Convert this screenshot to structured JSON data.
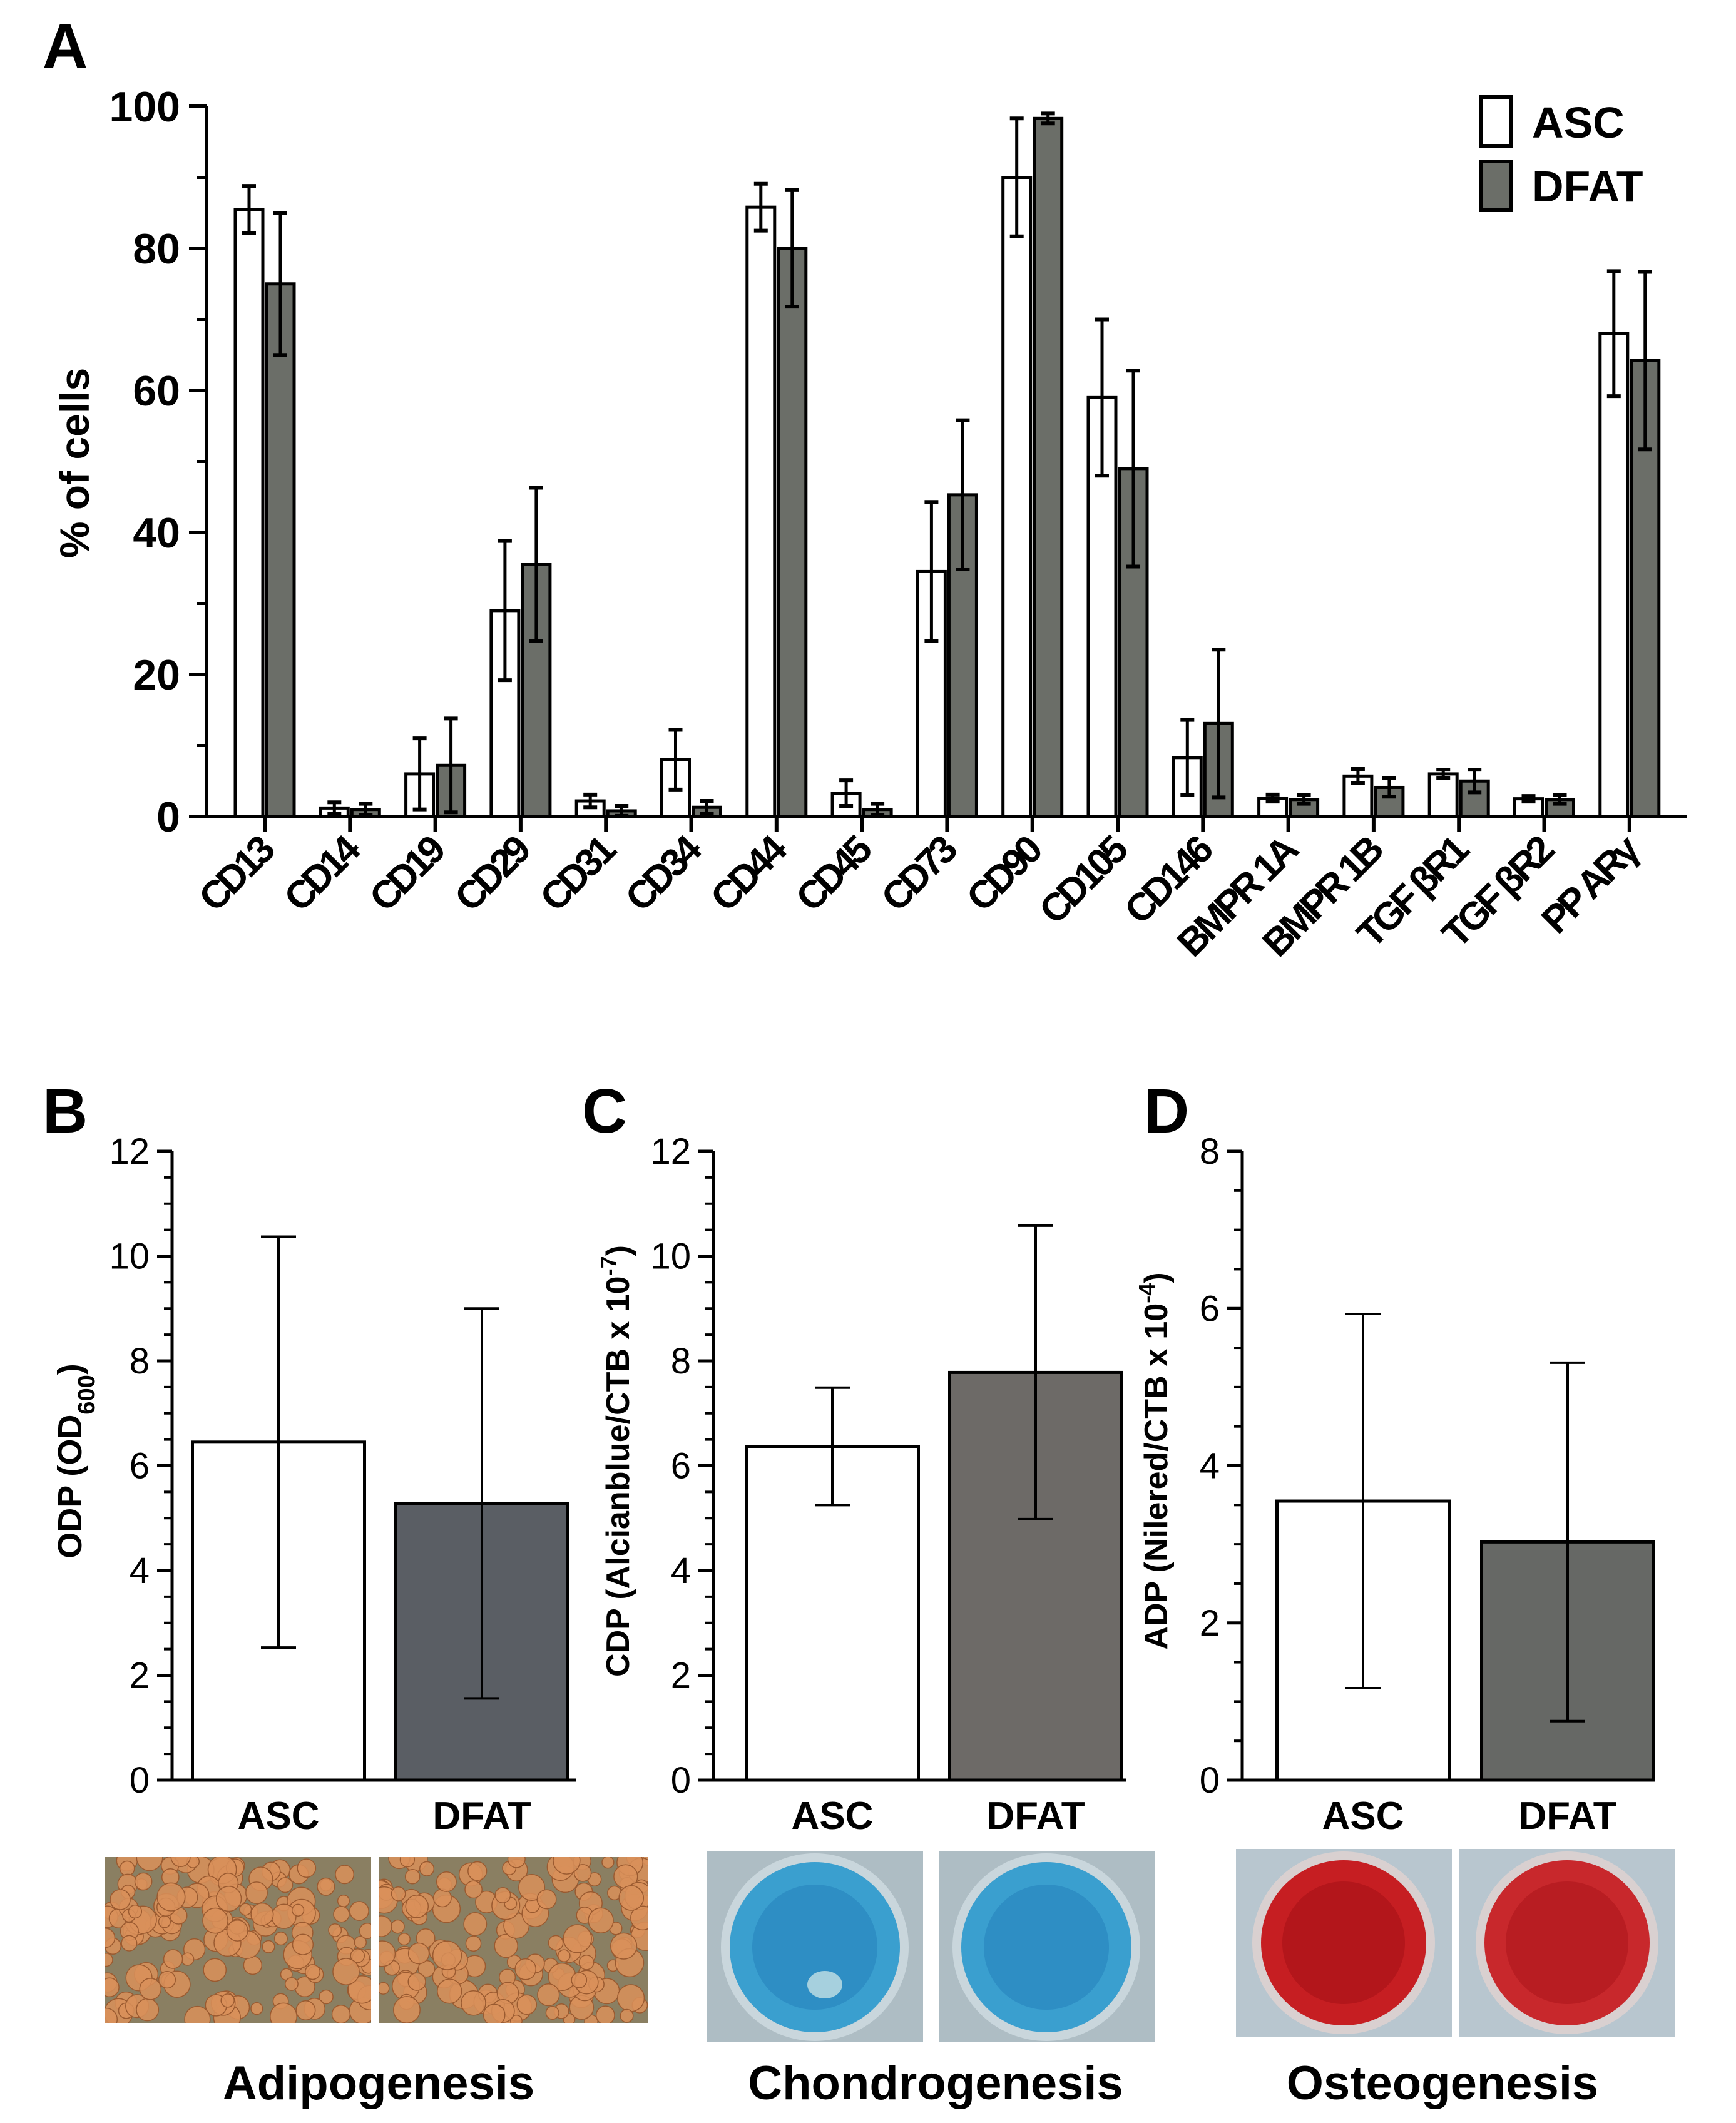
{
  "colors": {
    "asc_fill": "#ffffff",
    "dfat_fill_a": "#6b6e68",
    "dfat_fill_b": "#5a5e64",
    "dfat_fill_c": "#6d6a67",
    "dfat_fill_d": "#666865",
    "stroke": "#000000",
    "adipo_base": "#8a7f62",
    "adipo_cell": "#d9915b",
    "chondro_bg": "#aebdc4",
    "chondro_well": "#3a9fcf",
    "osteo_bg": "#b8c6cf",
    "osteo_well": "#c61e22"
  },
  "chart_data": [
    {
      "panel": "A",
      "type": "bar",
      "ylabel": "% of cells",
      "ylim": [
        0,
        100
      ],
      "yticks": [
        "0",
        "20",
        "40",
        "60",
        "80",
        "100"
      ],
      "legend": [
        "ASC",
        "DFAT"
      ],
      "legend_position": "top-right",
      "categories": [
        "CD13",
        "CD14",
        "CD19",
        "CD29",
        "CD31",
        "CD34",
        "CD44",
        "CD45",
        "CD73",
        "CD90",
        "CD105",
        "CD146",
        "BMPR  1A",
        "BMPR  1B",
        "TGF  βR1",
        "TGF  βR2",
        "PP ARγ"
      ],
      "series": [
        {
          "name": "ASC",
          "values": [
            85.5,
            1.2,
            6.0,
            29.0,
            2.2,
            8.0,
            85.8,
            3.3,
            34.5,
            90.0,
            59.0,
            8.3,
            2.6,
            5.7,
            6.0,
            2.5,
            68.0
          ],
          "errors": [
            3.3,
            0.8,
            5.0,
            9.8,
            0.9,
            4.2,
            3.3,
            1.8,
            9.8,
            8.3,
            11.0,
            5.3,
            0.5,
            1.0,
            0.6,
            0.4,
            8.8
          ]
        },
        {
          "name": "DFAT",
          "values": [
            75.0,
            1.0,
            7.2,
            35.5,
            0.8,
            1.3,
            80.0,
            1.0,
            45.3,
            98.3,
            49.0,
            13.1,
            2.4,
            4.1,
            5.0,
            2.4,
            64.2
          ],
          "errors": [
            10.0,
            0.8,
            6.6,
            10.8,
            0.7,
            0.9,
            8.2,
            0.8,
            10.5,
            0.7,
            13.8,
            10.4,
            0.6,
            1.3,
            1.6,
            0.6,
            12.5
          ]
        }
      ]
    },
    {
      "panel": "B",
      "type": "bar",
      "ylabel_main": "ODP (OD",
      "ylabel_sub": "600",
      "ylabel_end": ")",
      "ylim": [
        0,
        12
      ],
      "yticks": [
        "0",
        "2",
        "4",
        "6",
        "8",
        "10",
        "12"
      ],
      "categories": [
        "ASC",
        "DFAT"
      ],
      "values": [
        6.45,
        5.28
      ],
      "errors": [
        3.92,
        3.72
      ],
      "caption": "Adipogenesis"
    },
    {
      "panel": "C",
      "type": "bar",
      "ylabel_main": "CDP (Alcianblue/CTB x 10",
      "ylabel_sup": "-7",
      "ylabel_end": ")",
      "ylim": [
        0,
        12
      ],
      "yticks": [
        "0",
        "2",
        "4",
        "6",
        "8",
        "10",
        "12"
      ],
      "categories": [
        "ASC",
        "DFAT"
      ],
      "values": [
        6.37,
        7.78
      ],
      "errors": [
        1.12,
        2.8
      ],
      "caption": "Chondrogenesis"
    },
    {
      "panel": "D",
      "type": "bar",
      "ylabel_main": "ADP (Nilered/CTB x 10",
      "ylabel_sup": "-4",
      "ylabel_end": ")",
      "ylim": [
        0,
        8
      ],
      "yticks": [
        "0",
        "2",
        "4",
        "6",
        "8"
      ],
      "categories": [
        "ASC",
        "DFAT"
      ],
      "values": [
        3.55,
        3.03
      ],
      "errors": [
        2.38,
        2.28
      ],
      "caption": "Osteogenesis"
    }
  ]
}
